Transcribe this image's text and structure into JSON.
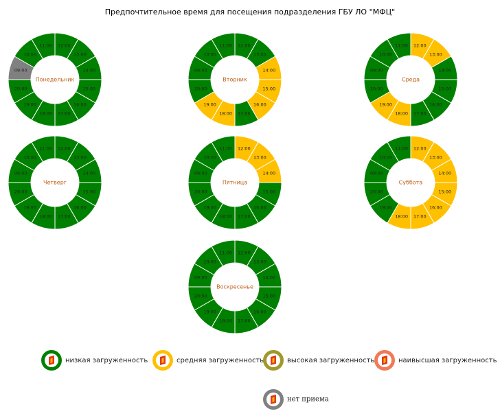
{
  "title": "Предпочтительное время для посещения подразделения ГБУ ЛО \"МФЦ\"",
  "legend": [
    {
      "label": "низкая загруженность",
      "color": "#008000"
    },
    {
      "label": "средняя загруженность",
      "color": "#ffc000"
    },
    {
      "label": "высокая загруженность",
      "color": "#a0982a"
    },
    {
      "label": "наивысшая загруженность",
      "color": "#f07a55"
    },
    {
      "label": "нет приема",
      "color": "#808080"
    }
  ],
  "days": [
    {
      "name": "Понедельник",
      "slots": [
        {
          "time": "12:00",
          "status": 0
        },
        {
          "time": "13:00",
          "status": 0
        },
        {
          "time": "14:00",
          "status": 0
        },
        {
          "time": "15:00",
          "status": 0
        },
        {
          "time": "16:00",
          "status": 0
        },
        {
          "time": "17:00",
          "status": 0
        },
        {
          "time": "18:00",
          "status": 0
        },
        {
          "time": "19:00",
          "status": 0
        },
        {
          "time": "20:00",
          "status": 0
        },
        {
          "time": "09:00",
          "status": 4
        },
        {
          "time": "10:00",
          "status": 0
        },
        {
          "time": "11:00",
          "status": 0
        }
      ]
    },
    {
      "name": "Вторник",
      "slots": [
        {
          "time": "12:00",
          "status": 0
        },
        {
          "time": "13:00",
          "status": 0
        },
        {
          "time": "14:00",
          "status": 1
        },
        {
          "time": "15:00",
          "status": 1
        },
        {
          "time": "16:00",
          "status": 1
        },
        {
          "time": "17:00",
          "status": 0
        },
        {
          "time": "18:00",
          "status": 1
        },
        {
          "time": "19:00",
          "status": 1
        },
        {
          "time": "20:00",
          "status": 0
        },
        {
          "time": "09:00",
          "status": 0
        },
        {
          "time": "10:00",
          "status": 0
        },
        {
          "time": "11:00",
          "status": 0
        }
      ]
    },
    {
      "name": "Среда",
      "slots": [
        {
          "time": "12:00",
          "status": 1
        },
        {
          "time": "13:00",
          "status": 1
        },
        {
          "time": "14:00",
          "status": 0
        },
        {
          "time": "15:00",
          "status": 0
        },
        {
          "time": "16:00",
          "status": 0
        },
        {
          "time": "17:00",
          "status": 0
        },
        {
          "time": "18:00",
          "status": 1
        },
        {
          "time": "19:00",
          "status": 1
        },
        {
          "time": "20:00",
          "status": 0
        },
        {
          "time": "09:00",
          "status": 0
        },
        {
          "time": "10:00",
          "status": 0
        },
        {
          "time": "11:00",
          "status": 0
        }
      ]
    },
    {
      "name": "Четверг",
      "slots": [
        {
          "time": "12:00",
          "status": 0
        },
        {
          "time": "13:00",
          "status": 0
        },
        {
          "time": "14:00",
          "status": 0
        },
        {
          "time": "15:00",
          "status": 0
        },
        {
          "time": "16:00",
          "status": 0
        },
        {
          "time": "17:00",
          "status": 0
        },
        {
          "time": "18:00",
          "status": 0
        },
        {
          "time": "19:00",
          "status": 0
        },
        {
          "time": "20:00",
          "status": 0
        },
        {
          "time": "09:00",
          "status": 0
        },
        {
          "time": "10:00",
          "status": 0
        },
        {
          "time": "11:00",
          "status": 0
        }
      ]
    },
    {
      "name": "Пятница",
      "slots": [
        {
          "time": "12:00",
          "status": 1
        },
        {
          "time": "13:00",
          "status": 1
        },
        {
          "time": "14:00",
          "status": 1
        },
        {
          "time": "15:00",
          "status": 0
        },
        {
          "time": "16:00",
          "status": 0
        },
        {
          "time": "17:00",
          "status": 0
        },
        {
          "time": "18:00",
          "status": 0
        },
        {
          "time": "19:00",
          "status": 0
        },
        {
          "time": "20:00",
          "status": 0
        },
        {
          "time": "09:00",
          "status": 0
        },
        {
          "time": "10:00",
          "status": 0
        },
        {
          "time": "11:00",
          "status": 0
        }
      ]
    },
    {
      "name": "Суббота",
      "slots": [
        {
          "time": "12:00",
          "status": 1
        },
        {
          "time": "13:00",
          "status": 1
        },
        {
          "time": "14:00",
          "status": 1
        },
        {
          "time": "15:00",
          "status": 1
        },
        {
          "time": "16:00",
          "status": 1
        },
        {
          "time": "17:00",
          "status": 1
        },
        {
          "time": "18:00",
          "status": 1
        },
        {
          "time": "19:00",
          "status": 0
        },
        {
          "time": "20:00",
          "status": 0
        },
        {
          "time": "09:00",
          "status": 0
        },
        {
          "time": "10:00",
          "status": 0
        },
        {
          "time": "11:00",
          "status": 0
        }
      ]
    },
    {
      "name": "Воскресенье",
      "slots": [
        {
          "time": "12:00",
          "status": 0
        },
        {
          "time": "13:00",
          "status": 0
        },
        {
          "time": "14:00",
          "status": 0
        },
        {
          "time": "15:00",
          "status": 0
        },
        {
          "time": "16:00",
          "status": 0
        },
        {
          "time": "17:00",
          "status": 0
        },
        {
          "time": "18:00",
          "status": 0
        },
        {
          "time": "19:00",
          "status": 0
        },
        {
          "time": "20:00",
          "status": 0
        },
        {
          "time": "09:00",
          "status": 0
        },
        {
          "time": "10:00",
          "status": 0
        },
        {
          "time": "11:00",
          "status": 0
        }
      ]
    }
  ]
}
